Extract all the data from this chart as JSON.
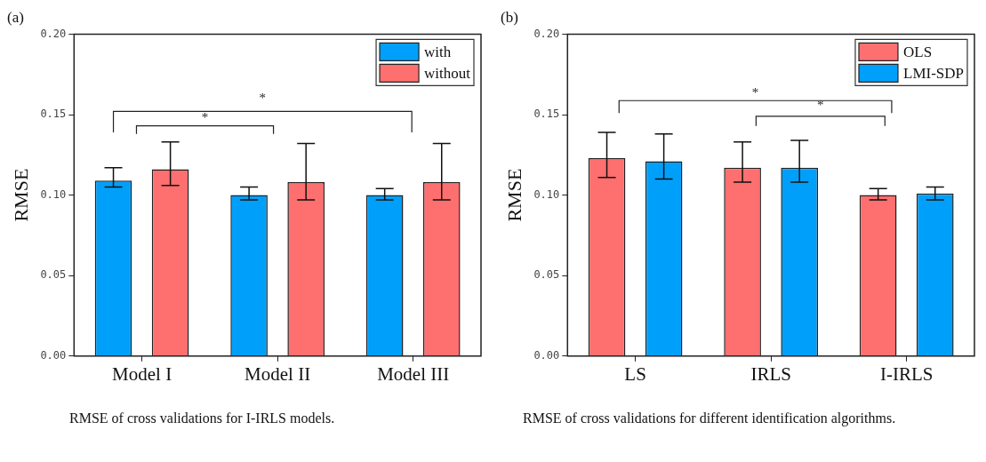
{
  "chart_data": [
    {
      "type": "bar",
      "title": "(a)",
      "ylabel": "RMSE",
      "categories": [
        "Model I",
        "Model II",
        "Model III"
      ],
      "series": [
        {
          "name": "with",
          "color": "#00a0fa",
          "values": [
            0.109,
            0.1,
            0.1
          ],
          "errors": [
            [
              0.105,
              0.117
            ],
            [
              0.097,
              0.105
            ],
            [
              0.097,
              0.104
            ]
          ]
        },
        {
          "name": "without",
          "color": "#fe6f6f",
          "values": [
            0.116,
            0.108,
            0.108
          ],
          "errors": [
            [
              0.106,
              0.133
            ],
            [
              0.097,
              0.132
            ],
            [
              0.097,
              0.132
            ]
          ]
        }
      ],
      "ylim": [
        0,
        0.2
      ],
      "yticks": [
        {
          "value": 0,
          "label": "0.00"
        },
        {
          "value": 0.05,
          "label": "0.05"
        },
        {
          "value": 0.1,
          "label": "0.10"
        },
        {
          "value": 0.15,
          "label": "0.15"
        },
        {
          "value": 0.2,
          "label": "0.20"
        }
      ],
      "legend": "top right",
      "annotations": [
        "*",
        "*",
        "RMSE of cross validations for I-IRLS models."
      ]
    },
    {
      "type": "bar",
      "title": "(b)",
      "ylabel": "RMSE",
      "categories": [
        "LS",
        "IRLS",
        "I-IRLS"
      ],
      "series": [
        {
          "name": "OLS",
          "color": "#fe6f6f",
          "values": [
            0.123,
            0.117,
            0.1
          ],
          "errors": [
            [
              0.111,
              0.139
            ],
            [
              0.108,
              0.133
            ],
            [
              0.097,
              0.104
            ]
          ]
        },
        {
          "name": "LMI-SDP",
          "color": "#00a0fa",
          "values": [
            0.121,
            0.117,
            0.101
          ],
          "errors": [
            [
              0.11,
              0.138
            ],
            [
              0.108,
              0.134
            ],
            [
              0.097,
              0.105
            ]
          ]
        }
      ],
      "ylim": [
        0,
        0.2
      ],
      "yticks": [
        {
          "value": 0,
          "label": "0.00"
        },
        {
          "value": 0.05,
          "label": "0.05"
        },
        {
          "value": 0.1,
          "label": "0.10"
        },
        {
          "value": 0.15,
          "label": "0.15"
        },
        {
          "value": 0.2,
          "label": "0.20"
        }
      ],
      "legend": "top right",
      "annotations": [
        "*",
        "*",
        "RMSE of cross validations for different identification algorithms."
      ]
    }
  ]
}
